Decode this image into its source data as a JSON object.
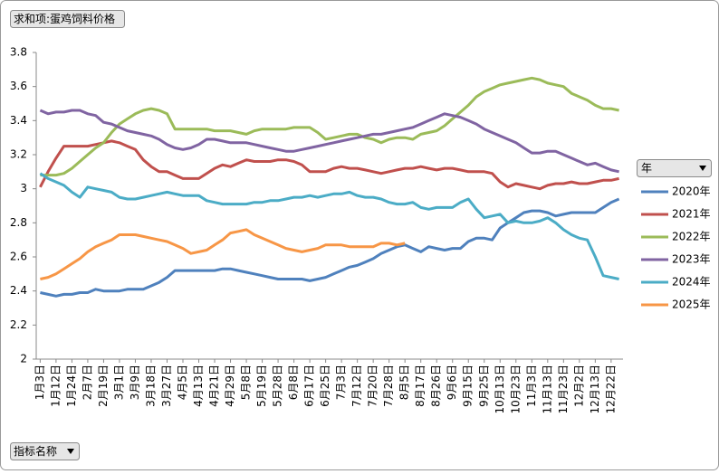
{
  "chart_data": {
    "type": "line",
    "value_field": "求和项:蛋鸡饲料价格",
    "legend_field": "年",
    "axis_field": "指标名称",
    "categories": [
      "1月3日",
      null,
      "1月12日",
      null,
      "1月24日",
      null,
      "2月7日",
      null,
      "2月19日",
      null,
      "3月1日",
      null,
      "3月9日",
      null,
      "3月18日",
      null,
      "3月27日",
      null,
      "4月5日",
      null,
      "4月13日",
      null,
      "4月21日",
      null,
      "4月29日",
      null,
      "5月8日",
      null,
      "5月19日",
      null,
      "5月28日",
      null,
      "6月8日",
      null,
      "6月17日",
      null,
      "6月25日",
      null,
      "7月3日",
      null,
      "7月12日",
      null,
      "7月20日",
      null,
      "7月28日",
      null,
      "8月5日",
      null,
      "8月17日",
      null,
      "8月26日",
      null,
      "9月6日",
      null,
      "9月15日",
      null,
      "9月25日",
      null,
      "10月13日",
      null,
      "10月23日",
      null,
      "11月3日",
      null,
      "11月13日",
      null,
      "11月23日",
      null,
      "12月2日",
      null,
      "12月13日",
      null,
      "12月22日",
      null
    ],
    "ylim": [
      2,
      3.8
    ],
    "yticks": [
      2,
      2.2,
      2.4,
      2.6,
      2.8,
      3,
      3.2,
      3.4,
      3.6,
      3.8
    ],
    "legend": "right",
    "series": [
      {
        "name": "2020年",
        "color": "#4f81bd",
        "values": [
          2.39,
          2.38,
          2.37,
          2.38,
          2.38,
          2.39,
          2.39,
          2.41,
          2.4,
          2.4,
          2.4,
          2.41,
          2.41,
          2.41,
          2.43,
          2.45,
          2.48,
          2.52,
          2.52,
          2.52,
          2.52,
          2.52,
          2.52,
          2.53,
          2.53,
          2.52,
          2.51,
          2.5,
          2.49,
          2.48,
          2.47,
          2.47,
          2.47,
          2.47,
          2.46,
          2.47,
          2.48,
          2.5,
          2.52,
          2.54,
          2.55,
          2.57,
          2.59,
          2.62,
          2.64,
          2.66,
          2.67,
          2.65,
          2.63,
          2.66,
          2.65,
          2.64,
          2.65,
          2.65,
          2.69,
          2.71,
          2.71,
          2.7,
          2.77,
          2.8,
          2.83,
          2.86,
          2.87,
          2.87,
          2.86,
          2.84,
          2.85,
          2.86,
          2.86,
          2.86,
          2.86,
          2.89,
          2.92,
          2.94
        ]
      },
      {
        "name": "2021年",
        "color": "#c0504d",
        "values": [
          3.01,
          3.1,
          3.18,
          3.25,
          3.25,
          3.25,
          3.25,
          3.26,
          3.27,
          3.28,
          3.27,
          3.25,
          3.23,
          3.17,
          3.13,
          3.1,
          3.1,
          3.08,
          3.06,
          3.06,
          3.06,
          3.09,
          3.12,
          3.14,
          3.13,
          3.15,
          3.17,
          3.16,
          3.16,
          3.16,
          3.17,
          3.17,
          3.16,
          3.14,
          3.1,
          3.1,
          3.1,
          3.12,
          3.13,
          3.12,
          3.12,
          3.11,
          3.1,
          3.09,
          3.1,
          3.11,
          3.12,
          3.12,
          3.13,
          3.12,
          3.11,
          3.12,
          3.12,
          3.11,
          3.1,
          3.1,
          3.1,
          3.09,
          3.04,
          3.01,
          3.03,
          3.02,
          3.01,
          3.0,
          3.02,
          3.03,
          3.03,
          3.04,
          3.03,
          3.03,
          3.04,
          3.05,
          3.05,
          3.06
        ]
      },
      {
        "name": "2022年",
        "color": "#9bbb59",
        "values": [
          3.08,
          3.08,
          3.08,
          3.09,
          3.12,
          3.16,
          3.2,
          3.24,
          3.27,
          3.33,
          3.38,
          3.41,
          3.44,
          3.46,
          3.47,
          3.46,
          3.44,
          3.35,
          3.35,
          3.35,
          3.35,
          3.35,
          3.34,
          3.34,
          3.34,
          3.33,
          3.32,
          3.34,
          3.35,
          3.35,
          3.35,
          3.35,
          3.36,
          3.36,
          3.36,
          3.33,
          3.29,
          3.3,
          3.31,
          3.32,
          3.32,
          3.3,
          3.29,
          3.27,
          3.29,
          3.3,
          3.3,
          3.29,
          3.32,
          3.33,
          3.34,
          3.37,
          3.41,
          3.45,
          3.49,
          3.54,
          3.57,
          3.59,
          3.61,
          3.62,
          3.63,
          3.64,
          3.65,
          3.64,
          3.62,
          3.61,
          3.6,
          3.56,
          3.54,
          3.52,
          3.49,
          3.47,
          3.47,
          3.46
        ]
      },
      {
        "name": "2023年",
        "color": "#8064a2",
        "values": [
          3.46,
          3.44,
          3.45,
          3.45,
          3.46,
          3.46,
          3.44,
          3.43,
          3.39,
          3.38,
          3.36,
          3.34,
          3.33,
          3.32,
          3.31,
          3.29,
          3.26,
          3.24,
          3.23,
          3.24,
          3.26,
          3.29,
          3.29,
          3.28,
          3.27,
          3.27,
          3.27,
          3.26,
          3.25,
          3.24,
          3.23,
          3.22,
          3.22,
          3.23,
          3.24,
          3.25,
          3.26,
          3.27,
          3.28,
          3.29,
          3.3,
          3.31,
          3.32,
          3.32,
          3.33,
          3.34,
          3.35,
          3.36,
          3.38,
          3.4,
          3.42,
          3.44,
          3.43,
          3.42,
          3.4,
          3.38,
          3.35,
          3.33,
          3.31,
          3.29,
          3.27,
          3.24,
          3.21,
          3.21,
          3.22,
          3.22,
          3.2,
          3.18,
          3.16,
          3.14,
          3.15,
          3.13,
          3.11,
          3.1
        ]
      },
      {
        "name": "2024年",
        "color": "#4bacc6",
        "values": [
          3.09,
          3.06,
          3.04,
          3.02,
          2.98,
          2.95,
          3.01,
          3.0,
          2.99,
          2.98,
          2.95,
          2.94,
          2.94,
          2.95,
          2.96,
          2.97,
          2.98,
          2.97,
          2.96,
          2.96,
          2.96,
          2.93,
          2.92,
          2.91,
          2.91,
          2.91,
          2.91,
          2.92,
          2.92,
          2.93,
          2.93,
          2.94,
          2.95,
          2.95,
          2.96,
          2.95,
          2.96,
          2.97,
          2.97,
          2.98,
          2.96,
          2.95,
          2.95,
          2.94,
          2.92,
          2.91,
          2.91,
          2.92,
          2.89,
          2.88,
          2.89,
          2.89,
          2.89,
          2.92,
          2.94,
          2.88,
          2.83,
          2.84,
          2.85,
          2.8,
          2.81,
          2.8,
          2.8,
          2.81,
          2.83,
          2.8,
          2.76,
          2.73,
          2.71,
          2.7,
          2.6,
          2.49,
          2.48,
          2.47
        ]
      },
      {
        "name": "2025年",
        "color": "#f79646",
        "values": [
          2.47,
          2.48,
          2.5,
          2.53,
          2.56,
          2.59,
          2.63,
          2.66,
          2.68,
          2.7,
          2.73,
          2.73,
          2.73,
          2.72,
          2.71,
          2.7,
          2.69,
          2.67,
          2.65,
          2.62,
          2.63,
          2.64,
          2.67,
          2.7,
          2.74,
          2.75,
          2.76,
          2.73,
          2.71,
          2.69,
          2.67,
          2.65,
          2.64,
          2.63,
          2.64,
          2.65,
          2.67,
          2.67,
          2.67,
          2.66,
          2.66,
          2.66,
          2.66,
          2.68,
          2.68,
          2.67,
          2.68,
          null,
          null,
          null,
          null,
          null,
          null,
          null,
          null,
          null,
          null,
          null,
          null,
          null,
          null,
          null,
          null,
          null,
          null,
          null,
          null,
          null,
          null,
          null,
          null,
          null,
          null,
          null
        ]
      }
    ]
  }
}
